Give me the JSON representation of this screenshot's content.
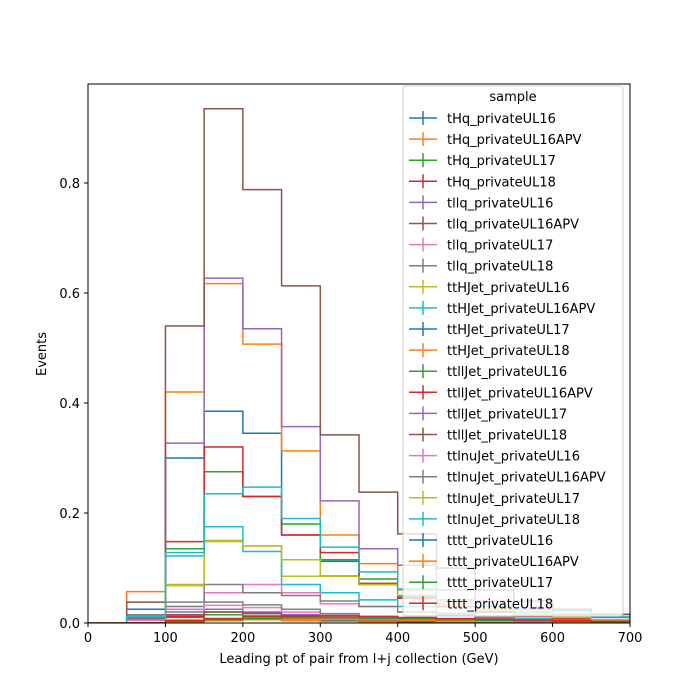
{
  "chart_data": {
    "type": "step-histogram",
    "xlabel": "Leading pt of pair from l+j collection (GeV)",
    "ylabel": "Events",
    "xlim": [
      0,
      700
    ],
    "ylim": [
      0,
      0.98
    ],
    "xticks": [
      0,
      100,
      200,
      300,
      400,
      500,
      600,
      700
    ],
    "yticks": [
      0.0,
      0.2,
      0.4,
      0.6,
      0.8
    ],
    "grid": false,
    "legend_title": "sample",
    "legend_position": "upper right",
    "bin_edges": [
      0,
      50,
      100,
      150,
      200,
      250,
      300,
      350,
      400,
      450,
      500,
      550,
      600,
      650,
      700
    ],
    "series": [
      {
        "name": "tHq_privateUL16",
        "color": "#1f77b4",
        "values": [
          0.0,
          0.0,
          0.005,
          0.008,
          0.007,
          0.005,
          0.004,
          0.002,
          0.001,
          0.001,
          0.0,
          0.0,
          0.0,
          0.0
        ]
      },
      {
        "name": "tHq_privateUL16APV",
        "color": "#ff7f0e",
        "values": [
          0.0,
          0.0,
          0.004,
          0.007,
          0.006,
          0.004,
          0.003,
          0.002,
          0.001,
          0.001,
          0.0,
          0.0,
          0.0,
          0.0
        ]
      },
      {
        "name": "tHq_privateUL17",
        "color": "#2ca02c",
        "values": [
          0.0,
          0.0,
          0.01,
          0.015,
          0.013,
          0.01,
          0.007,
          0.004,
          0.002,
          0.001,
          0.001,
          0.0,
          0.0,
          0.0
        ]
      },
      {
        "name": "tHq_privateUL18",
        "color": "#d62728",
        "values": [
          0.0,
          0.0,
          0.012,
          0.02,
          0.018,
          0.013,
          0.009,
          0.005,
          0.003,
          0.002,
          0.001,
          0.0,
          0.0,
          0.0
        ]
      },
      {
        "name": "tllq_privateUL16",
        "color": "#9467bd",
        "values": [
          0.0,
          0.01,
          0.02,
          0.025,
          0.02,
          0.015,
          0.01,
          0.006,
          0.004,
          0.002,
          0.001,
          0.001,
          0.0,
          0.0
        ]
      },
      {
        "name": "tllq_privateUL16APV",
        "color": "#8c564b",
        "values": [
          0.0,
          0.008,
          0.015,
          0.02,
          0.017,
          0.012,
          0.008,
          0.005,
          0.003,
          0.002,
          0.001,
          0.001,
          0.0,
          0.0
        ]
      },
      {
        "name": "tllq_privateUL17",
        "color": "#e377c2",
        "values": [
          0.0,
          0.012,
          0.025,
          0.032,
          0.028,
          0.02,
          0.014,
          0.009,
          0.005,
          0.003,
          0.002,
          0.001,
          0.001,
          0.0
        ]
      },
      {
        "name": "tllq_privateUL18",
        "color": "#7f7f7f",
        "values": [
          0.0,
          0.015,
          0.03,
          0.038,
          0.033,
          0.025,
          0.017,
          0.011,
          0.006,
          0.004,
          0.002,
          0.001,
          0.001,
          0.0
        ]
      },
      {
        "name": "ttHJet_privateUL16",
        "color": "#bcbd22",
        "values": [
          0.0,
          0.0,
          0.068,
          0.15,
          0.14,
          0.085,
          0.086,
          0.07,
          0.05,
          0.03,
          0.02,
          0.012,
          0.008,
          0.005
        ]
      },
      {
        "name": "ttHJet_privateUL16APV",
        "color": "#17becf",
        "values": [
          0.0,
          0.0,
          0.122,
          0.175,
          0.13,
          0.07,
          0.055,
          0.042,
          0.03,
          0.018,
          0.012,
          0.008,
          0.005,
          0.003
        ]
      },
      {
        "name": "ttHJet_privateUL17",
        "color": "#1f77b4",
        "values": [
          0.0,
          0.025,
          0.3,
          0.385,
          0.345,
          0.16,
          0.112,
          0.07,
          0.048,
          0.03,
          0.02,
          0.012,
          0.008,
          0.005
        ]
      },
      {
        "name": "ttHJet_privateUL18",
        "color": "#ff7f0e",
        "values": [
          0.0,
          0.057,
          0.42,
          0.617,
          0.507,
          0.313,
          0.16,
          0.108,
          0.06,
          0.04,
          0.025,
          0.016,
          0.01,
          0.006
        ]
      },
      {
        "name": "ttllJet_privateUL16",
        "color": "#2ca02c",
        "values": [
          0.0,
          0.0,
          0.135,
          0.275,
          0.23,
          0.18,
          0.115,
          0.08,
          0.05,
          0.03,
          0.02,
          0.012,
          0.008,
          0.005
        ]
      },
      {
        "name": "ttllJet_privateUL16APV",
        "color": "#d62728",
        "values": [
          0.0,
          0.0,
          0.148,
          0.32,
          0.23,
          0.16,
          0.128,
          0.072,
          0.045,
          0.03,
          0.02,
          0.012,
          0.008,
          0.005
        ]
      },
      {
        "name": "ttllJet_privateUL17",
        "color": "#9467bd",
        "values": [
          0.0,
          0.0,
          0.327,
          0.627,
          0.535,
          0.357,
          0.222,
          0.135,
          0.105,
          0.06,
          0.04,
          0.025,
          0.016,
          0.01
        ]
      },
      {
        "name": "ttllJet_privateUL18",
        "color": "#8c564b",
        "values": [
          0.0,
          0.038,
          0.54,
          0.935,
          0.788,
          0.613,
          0.342,
          0.238,
          0.162,
          0.1,
          0.06,
          0.04,
          0.025,
          0.016
        ]
      },
      {
        "name": "ttlnuJet_privateUL16",
        "color": "#e377c2",
        "values": [
          0.0,
          0.005,
          0.025,
          0.055,
          0.07,
          0.055,
          0.035,
          0.03,
          0.02,
          0.015,
          0.01,
          0.006,
          0.004,
          0.002
        ]
      },
      {
        "name": "ttlnuJet_privateUL16APV",
        "color": "#7f7f7f",
        "values": [
          0.0,
          0.01,
          0.038,
          0.07,
          0.055,
          0.05,
          0.04,
          0.03,
          0.02,
          0.015,
          0.01,
          0.006,
          0.004,
          0.002
        ]
      },
      {
        "name": "ttlnuJet_privateUL17",
        "color": "#bcbd22",
        "values": [
          0.0,
          0.012,
          0.07,
          0.148,
          0.14,
          0.115,
          0.085,
          0.07,
          0.05,
          0.035,
          0.024,
          0.015,
          0.01,
          0.006
        ]
      },
      {
        "name": "ttlnuJet_privateUL18",
        "color": "#17becf",
        "values": [
          0.0,
          0.012,
          0.128,
          0.235,
          0.247,
          0.19,
          0.138,
          0.093,
          0.062,
          0.042,
          0.03,
          0.02,
          0.022,
          0.012
        ]
      },
      {
        "name": "tttt_privateUL16",
        "color": "#1f77b4",
        "values": [
          0.0,
          0.0,
          0.002,
          0.005,
          0.007,
          0.008,
          0.008,
          0.007,
          0.006,
          0.005,
          0.004,
          0.003,
          0.002,
          0.002
        ]
      },
      {
        "name": "tttt_privateUL16APV",
        "color": "#ff7f0e",
        "values": [
          0.0,
          0.0,
          0.002,
          0.004,
          0.006,
          0.007,
          0.007,
          0.006,
          0.005,
          0.004,
          0.003,
          0.003,
          0.002,
          0.001
        ]
      },
      {
        "name": "tttt_privateUL17",
        "color": "#2ca02c",
        "values": [
          0.0,
          0.0,
          0.003,
          0.006,
          0.008,
          0.01,
          0.01,
          0.009,
          0.008,
          0.006,
          0.005,
          0.004,
          0.003,
          0.002
        ]
      },
      {
        "name": "tttt_privateUL18",
        "color": "#d62728",
        "values": [
          0.0,
          0.0,
          0.004,
          0.008,
          0.011,
          0.013,
          0.013,
          0.012,
          0.01,
          0.008,
          0.007,
          0.005,
          0.004,
          0.003
        ]
      }
    ]
  }
}
